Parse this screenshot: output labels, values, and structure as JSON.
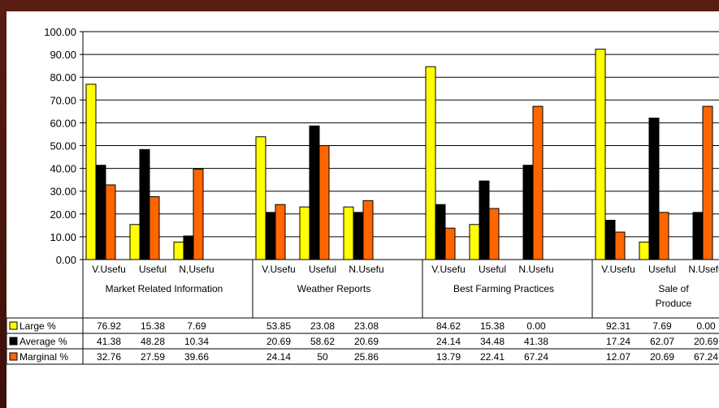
{
  "chart_data": {
    "type": "bar",
    "ylim": [
      0,
      100
    ],
    "yticks": [
      "100.00",
      "90.00",
      "80.00",
      "70.00",
      "60.00",
      "50.00",
      "40.00",
      "30.00",
      "20.00",
      "10.00",
      "0.00"
    ],
    "groups": [
      {
        "label": "Market Related Information",
        "label_lines": [
          "Market Related Information"
        ],
        "subcats": [
          "V.Usefu",
          "Useful",
          "N,Usefu"
        ]
      },
      {
        "label": "Weather Reports",
        "label_lines": [
          "Weather Reports"
        ],
        "subcats": [
          "V.Usefu",
          "Useful",
          "N.Usefu"
        ]
      },
      {
        "label": "Best Farming Practices",
        "label_lines": [
          "Best Farming Practices"
        ],
        "subcats": [
          "V.Usefu",
          "Useful",
          "N.Usefu"
        ]
      },
      {
        "label": "Sale of Produce",
        "label_lines": [
          "Sale          of",
          "Produce"
        ],
        "subcats": [
          "V.Usefu",
          "Useful",
          "N.Usefu"
        ]
      }
    ],
    "series": [
      {
        "name": "Large %",
        "color": "#ffff00",
        "values": [
          76.92,
          15.38,
          7.69,
          53.85,
          23.08,
          23.08,
          84.62,
          15.38,
          0.0,
          92.31,
          7.69,
          0.0
        ],
        "labels": [
          "76.92",
          "15.38",
          "7.69",
          "53.85",
          "23.08",
          "23.08",
          "84.62",
          "15.38",
          "0.00",
          "92.31",
          "7.69",
          "0.00"
        ]
      },
      {
        "name": "Average %",
        "color": "#000000",
        "values": [
          41.38,
          48.28,
          10.34,
          20.69,
          58.62,
          20.69,
          24.14,
          34.48,
          41.38,
          17.24,
          62.07,
          20.69
        ],
        "labels": [
          "41.38",
          "48.28",
          "10.34",
          "20.69",
          "58.62",
          "20.69",
          "24.14",
          "34.48",
          "41.38",
          "17.24",
          "62.07",
          "20.69"
        ]
      },
      {
        "name": "Marginal %",
        "color": "#ff6600",
        "values": [
          32.76,
          27.59,
          39.66,
          24.14,
          50,
          25.86,
          13.79,
          22.41,
          67.24,
          12.07,
          20.69,
          67.24
        ],
        "labels": [
          "32.76",
          "27.59",
          "39.66",
          "24.14",
          "50",
          "25.86",
          "13.79",
          "22.41",
          "67.24",
          "12.07",
          "20.69",
          "67.24"
        ]
      }
    ]
  }
}
